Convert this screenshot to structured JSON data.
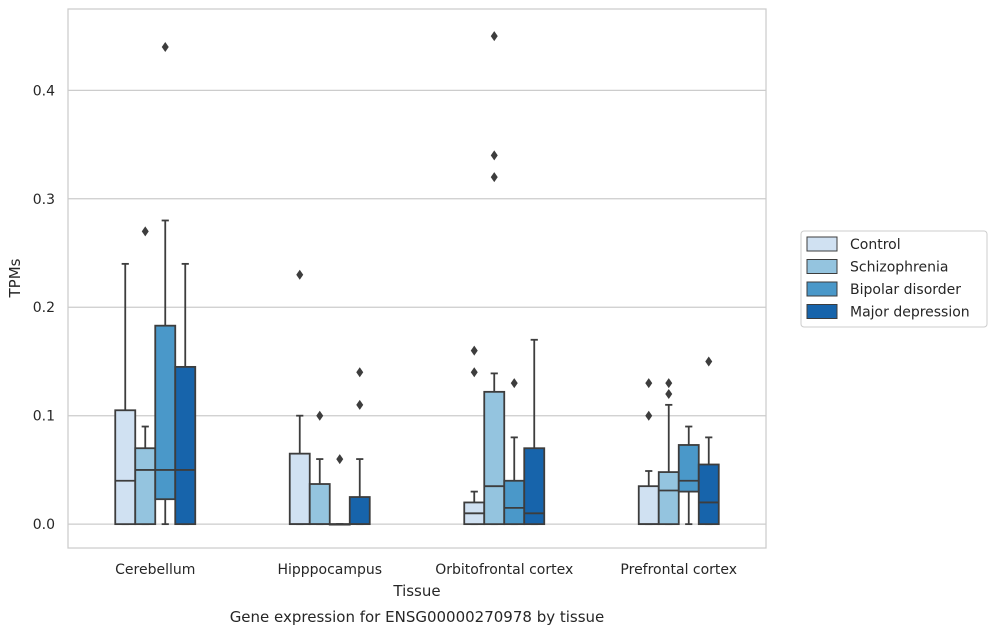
{
  "chart_data": {
    "type": "boxplot",
    "title": "",
    "caption": "Gene expression for ENSG00000270978 by tissue",
    "xlabel": "Tissue",
    "ylabel": "TPMs",
    "ylim": [
      -0.022,
      0.475
    ],
    "yticks": [
      0.0,
      0.1,
      0.2,
      0.3,
      0.4
    ],
    "ytick_labels": [
      "0.0",
      "0.1",
      "0.2",
      "0.3",
      "0.4"
    ],
    "grid": "horizontal",
    "legend_position": "right",
    "categories": [
      "Cerebellum",
      "Hipppocampus",
      "Orbitofrontal cortex",
      "Prefrontal cortex"
    ],
    "series": [
      {
        "name": "Control",
        "color": "#d0e1f2",
        "boxes": [
          {
            "whislo": 0.0,
            "q1": 0.0,
            "med": 0.04,
            "q3": 0.105,
            "whishi": 0.24,
            "fliers": []
          },
          {
            "whislo": 0.0,
            "q1": 0.0,
            "med": 0.0,
            "q3": 0.065,
            "whishi": 0.1,
            "fliers": [
              0.23
            ]
          },
          {
            "whislo": 0.0,
            "q1": 0.0,
            "med": 0.01,
            "q3": 0.02,
            "whishi": 0.03,
            "fliers": [
              0.14,
              0.16
            ]
          },
          {
            "whislo": 0.0,
            "q1": 0.0,
            "med": 0.0,
            "q3": 0.035,
            "whishi": 0.049,
            "fliers": [
              0.1,
              0.13
            ]
          }
        ]
      },
      {
        "name": "Schizophrenia",
        "color": "#94c4df",
        "boxes": [
          {
            "whislo": 0.0,
            "q1": 0.0,
            "med": 0.05,
            "q3": 0.07,
            "whishi": 0.09,
            "fliers": [
              0.27
            ]
          },
          {
            "whislo": 0.0,
            "q1": 0.0,
            "med": 0.0,
            "q3": 0.037,
            "whishi": 0.06,
            "fliers": [
              0.1
            ]
          },
          {
            "whislo": 0.0,
            "q1": 0.0,
            "med": 0.035,
            "q3": 0.122,
            "whishi": 0.139,
            "fliers": [
              0.32,
              0.34,
              0.45
            ]
          },
          {
            "whislo": 0.0,
            "q1": 0.0,
            "med": 0.031,
            "q3": 0.048,
            "whishi": 0.11,
            "fliers": [
              0.12,
              0.13
            ]
          }
        ]
      },
      {
        "name": "Bipolar disorder",
        "color": "#4a98c9",
        "boxes": [
          {
            "whislo": 0.0,
            "q1": 0.023,
            "med": 0.05,
            "q3": 0.183,
            "whishi": 0.28,
            "fliers": [
              0.44
            ]
          },
          {
            "whislo": 0.0,
            "q1": 0.0,
            "med": 0.0,
            "q3": 0.0,
            "whishi": 0.0,
            "fliers": [
              0.06
            ]
          },
          {
            "whislo": 0.0,
            "q1": 0.0,
            "med": 0.015,
            "q3": 0.04,
            "whishi": 0.08,
            "fliers": [
              0.13
            ]
          },
          {
            "whislo": 0.0,
            "q1": 0.03,
            "med": 0.04,
            "q3": 0.073,
            "whishi": 0.09,
            "fliers": []
          }
        ]
      },
      {
        "name": "Major depression",
        "color": "#1764ab",
        "boxes": [
          {
            "whislo": 0.0,
            "q1": 0.0,
            "med": 0.05,
            "q3": 0.145,
            "whishi": 0.24,
            "fliers": []
          },
          {
            "whislo": 0.0,
            "q1": 0.0,
            "med": 0.0,
            "q3": 0.025,
            "whishi": 0.06,
            "fliers": [
              0.11,
              0.14
            ]
          },
          {
            "whislo": 0.0,
            "q1": 0.0,
            "med": 0.01,
            "q3": 0.07,
            "whishi": 0.17,
            "fliers": []
          },
          {
            "whislo": 0.0,
            "q1": 0.0,
            "med": 0.02,
            "q3": 0.055,
            "whishi": 0.08,
            "fliers": [
              0.15
            ]
          }
        ]
      }
    ]
  }
}
